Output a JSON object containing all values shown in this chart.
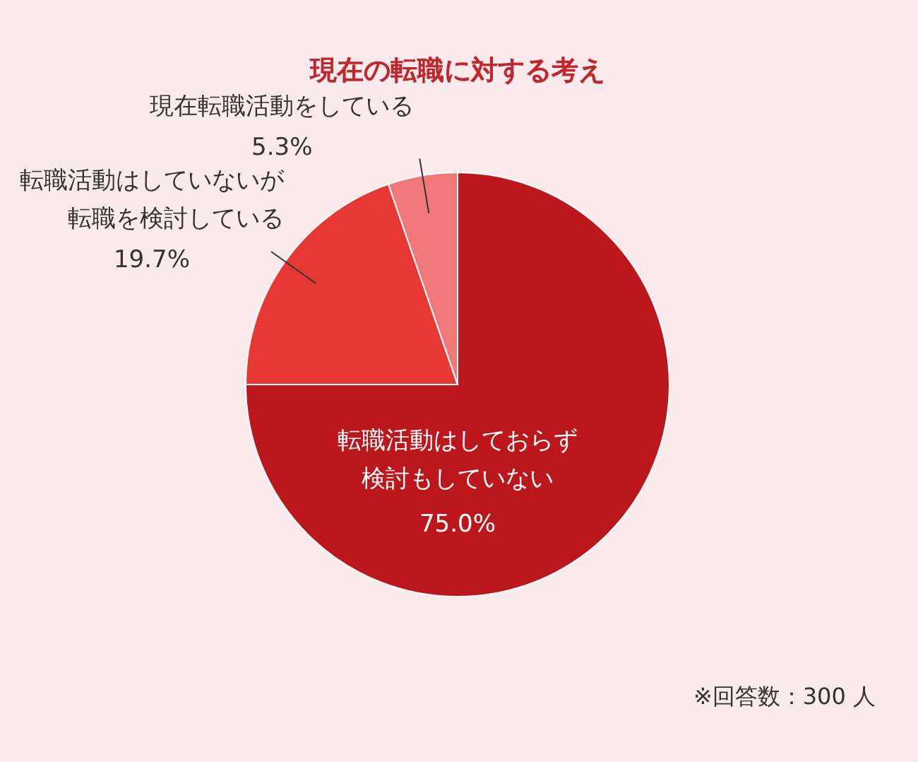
{
  "chart_data": {
    "type": "pie",
    "title": "現在の転職に対する考え",
    "categories": [
      "転職活動はしておらず検討もしていない",
      "転職活動はしていないが転職を検討している",
      "現在転職活動をしている"
    ],
    "values": [
      75.0,
      19.7,
      5.3
    ],
    "colors": [
      "#bb171c",
      "#e83836",
      "#f07878"
    ],
    "value_labels": [
      "75.0%",
      "19.7%",
      "5.3%"
    ],
    "annotations": [
      "※回答数：300 人"
    ]
  }
}
